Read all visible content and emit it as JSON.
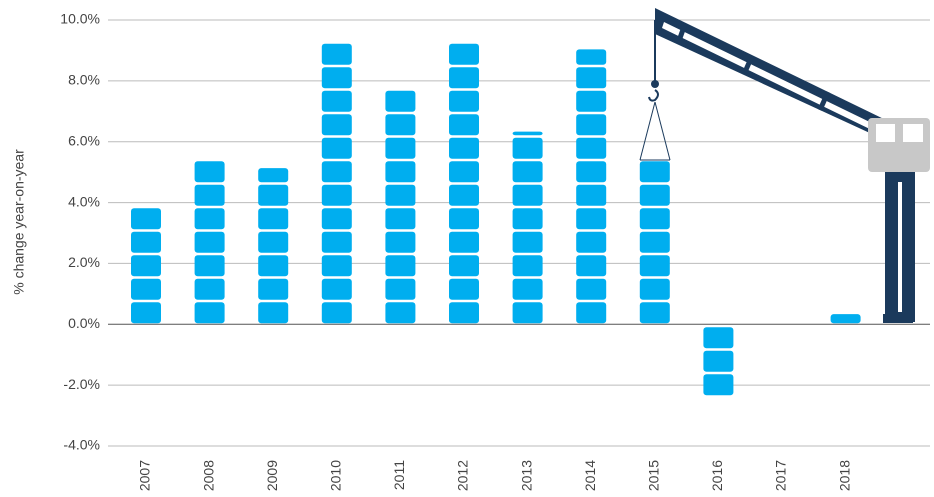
{
  "chart_data": {
    "type": "bar",
    "y_label": "% change year-on-year",
    "categories": [
      "2007",
      "2008",
      "2009",
      "2010",
      "2011",
      "2012",
      "2013",
      "2014",
      "2015",
      "2016",
      "2017",
      "2018"
    ],
    "values": [
      3.8,
      5.4,
      5.1,
      9.2,
      7.7,
      9.2,
      6.3,
      9.0,
      5.4,
      -2.3,
      0,
      0.3
    ],
    "color": "#00aeef",
    "ylim": [
      -4,
      10
    ],
    "yticks": [
      {
        "value": -4,
        "label": "-4.0%"
      },
      {
        "value": -2,
        "label": "-2.0%"
      },
      {
        "value": 0,
        "label": "0.0%"
      },
      {
        "value": 2,
        "label": "2.0%"
      },
      {
        "value": 4,
        "label": "4.0%"
      },
      {
        "value": 6,
        "label": "6.0%"
      },
      {
        "value": 8,
        "label": "8.0%"
      },
      {
        "value": 10,
        "label": "10.0%"
      }
    ],
    "grid": true
  }
}
